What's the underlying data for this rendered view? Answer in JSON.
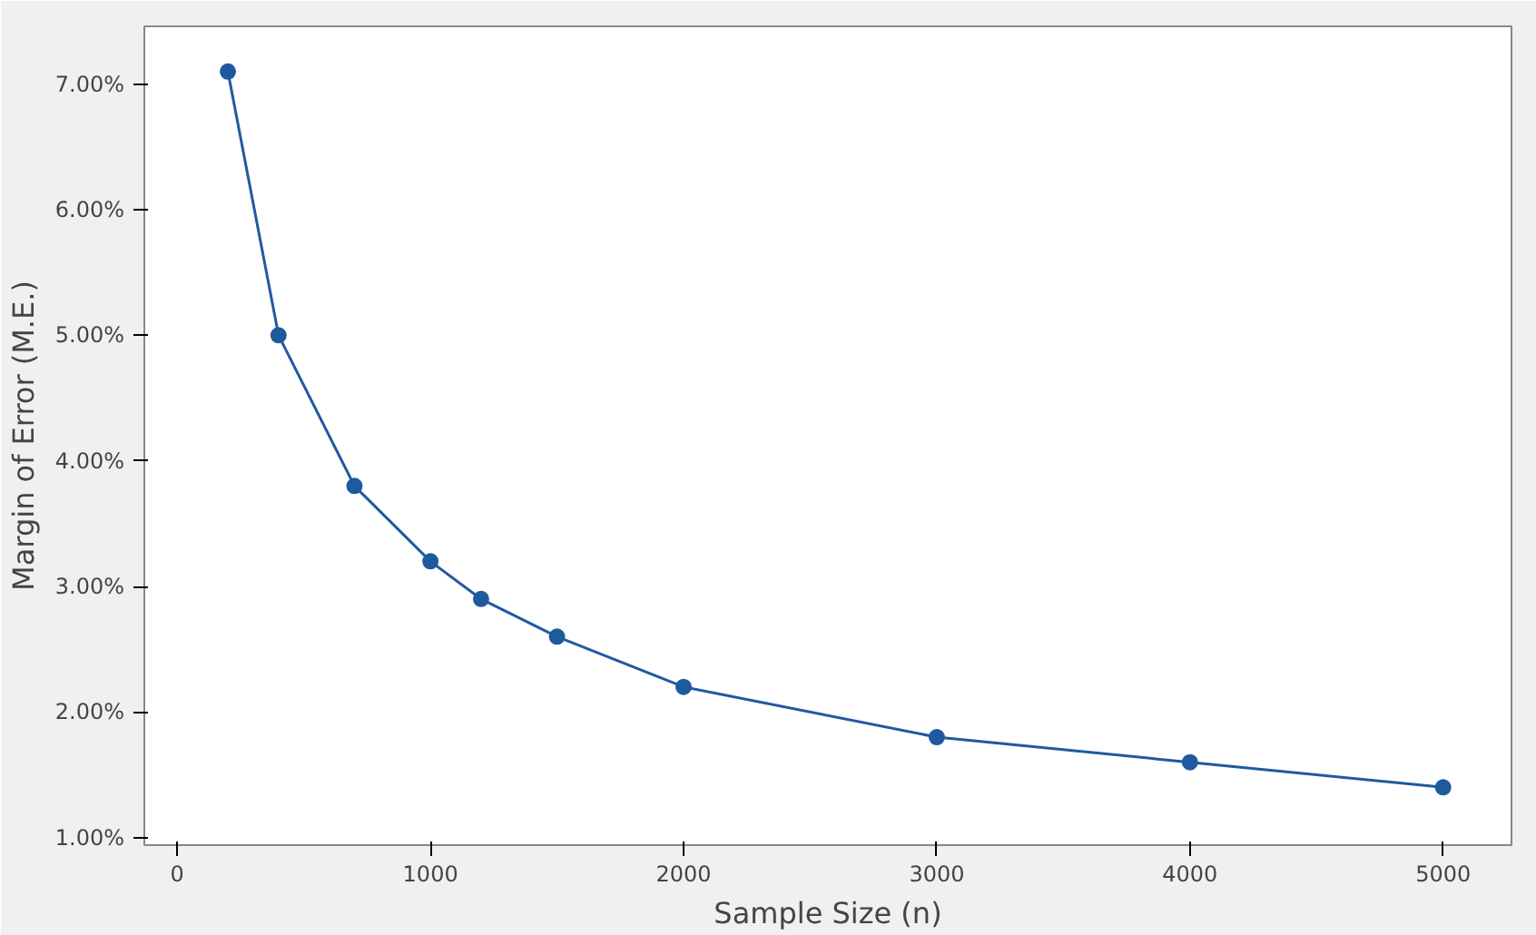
{
  "chart_data": {
    "type": "line",
    "xlabel": "Sample Size (n)",
    "ylabel": "Margin of Error (M.E.)",
    "x": [
      200,
      400,
      700,
      1000,
      1200,
      1500,
      2000,
      3000,
      4000,
      5000
    ],
    "series": [
      {
        "color": "#1f5a9e",
        "values": [
          7.1,
          5.0,
          3.8,
          3.2,
          2.9,
          2.6,
          2.2,
          1.8,
          1.6,
          1.4
        ]
      }
    ],
    "xlim": [
      -130,
      5270
    ],
    "xticks": [
      0,
      1000,
      2000,
      3000,
      4000,
      5000
    ],
    "ylim": [
      0.94,
      7.46
    ],
    "yticks": [
      {
        "value": 1,
        "label": "1.00%"
      },
      {
        "value": 2,
        "label": "2.00%"
      },
      {
        "value": 3,
        "label": "3.00%"
      },
      {
        "value": 4,
        "label": "4.00%"
      },
      {
        "value": 5,
        "label": "5.00%"
      },
      {
        "value": 6,
        "label": "6.00%"
      },
      {
        "value": 7,
        "label": "7.00%"
      }
    ],
    "marker": "circle",
    "line_style": "solid",
    "grid": false
  }
}
